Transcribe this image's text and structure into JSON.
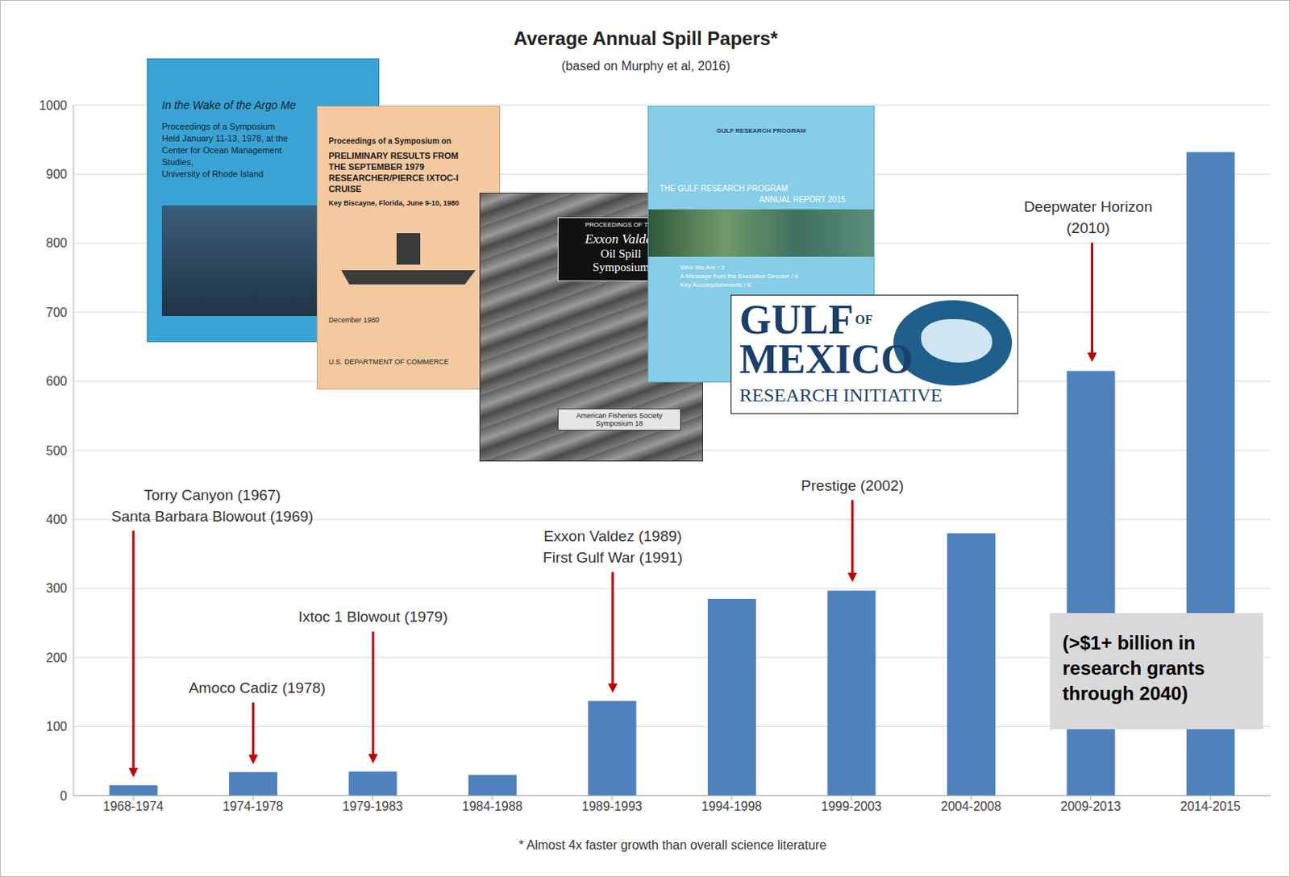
{
  "chart_data": {
    "type": "bar",
    "title": "Average Annual Spill Papers*",
    "subtitle": "(based on Murphy et al, 2016)",
    "categories": [
      "1968-1974",
      "1974-1978",
      "1979-1983",
      "1984-1988",
      "1989-1993",
      "1994-1998",
      "1999-2003",
      "2004-2008",
      "2009-2013",
      "2014-2015"
    ],
    "values": [
      15,
      34,
      35,
      30,
      137,
      285,
      297,
      380,
      615,
      932
    ],
    "color": "#4f81bd",
    "ylim": [
      0,
      1000
    ],
    "yticks": [
      0,
      100,
      200,
      300,
      400,
      500,
      600,
      700,
      800,
      900,
      1000
    ],
    "grid": true,
    "footnote": "* Almost 4x faster growth than overall science literature",
    "annotations": [
      {
        "text": [
          "Torry Canyon (1967)",
          "Santa Barbara Blowout (1969)"
        ],
        "category": "1968-1974"
      },
      {
        "text": [
          "Amoco Cadiz (1978)"
        ],
        "category": "1974-1978"
      },
      {
        "text": [
          "Ixtoc 1 Blowout (1979)"
        ],
        "category": "1979-1983"
      },
      {
        "text": [
          "Exxon Valdez (1989)",
          "First Gulf War (1991)"
        ],
        "category": "1989-1993"
      },
      {
        "text": [
          "Prestige (2002)"
        ],
        "category": "1999-2003"
      },
      {
        "text": [
          "Deepwater Horizon",
          "(2010)"
        ],
        "category": "2009-2013"
      }
    ],
    "text_box": "(>$1+ billion in research grants through 2040)"
  },
  "images": {
    "covers": [
      {
        "lines": [
          "In the Wake of the Argo Me",
          "Proceedings of a Symposium",
          "Held January 11-13, 1978, at the",
          "Center for Ocean Management Studies,",
          "University of Rhode Island"
        ]
      },
      {
        "lines": [
          "Proceedings of a Symposium on",
          "PRELIMINARY RESULTS FROM",
          "THE SEPTEMBER 1979",
          "RESEARCHER/PIERCE IXTOC-I CRUISE",
          "Key Biscayne, Florida, June 9-10, 1980",
          "December 1980",
          "U.S. DEPARTMENT OF COMMERCE"
        ]
      },
      {
        "lines": [
          "PROCEEDINGS OF THE",
          "Exxon Valdez",
          "Oil Spill",
          "Symposium",
          "American Fisheries Society",
          "Symposium 18"
        ]
      },
      {
        "lines": [
          "GULF RESEARCH PROGRAM",
          "THE GULF RESEARCH PROGRAM",
          "ANNUAL REPORT 2015",
          "Who We Are / 3",
          "A Message from the Executive Director / 4",
          "Key Accomplishments / 6"
        ]
      }
    ],
    "logo": {
      "lines": [
        "GULF",
        "OF",
        "MEXICO",
        "RESEARCH INITIATIVE"
      ]
    }
  }
}
